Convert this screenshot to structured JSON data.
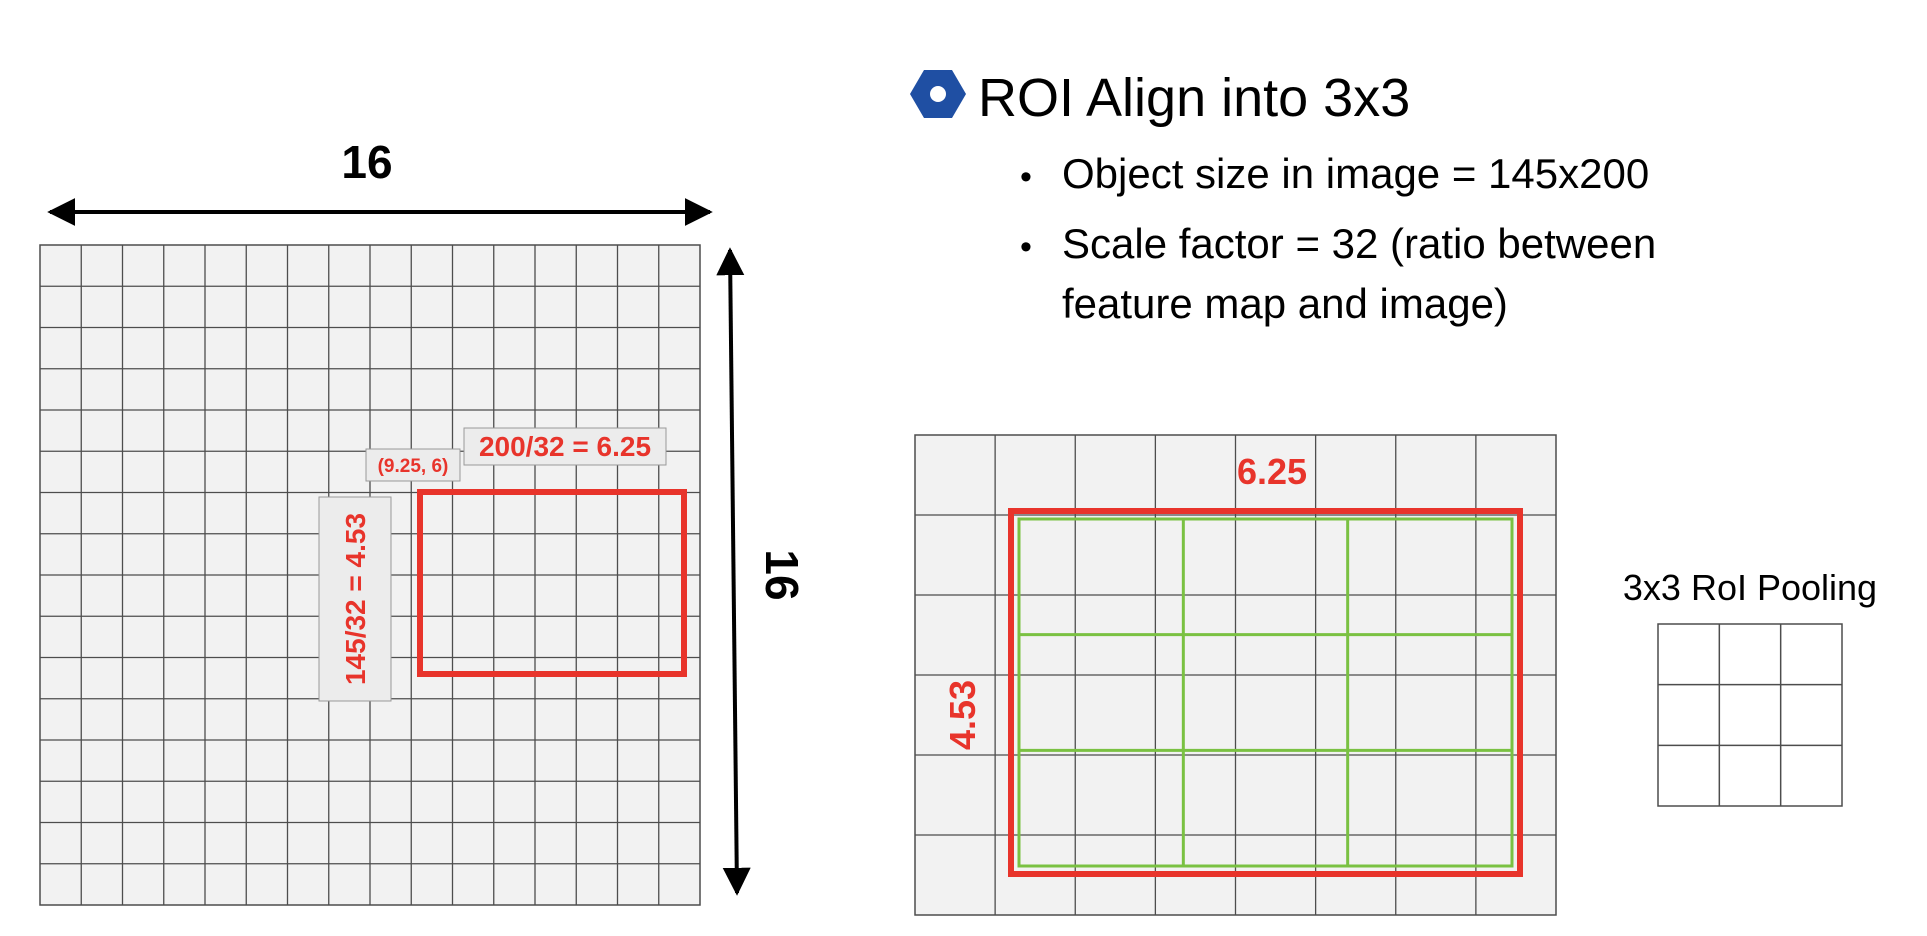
{
  "left_panel": {
    "width_label": "16",
    "height_label": "16",
    "grid_cells": 16,
    "roi_origin_label": "(9.25, 6)",
    "roi_width_label": "200/32 = 6.25",
    "roi_height_label": "145/32 = 4.53"
  },
  "slide": {
    "heading": "ROI Align into 3x3",
    "bullets": [
      "Object size in image = 145x200",
      "Scale factor = 32 (ratio between",
      "feature map and image)"
    ]
  },
  "roi_zoom": {
    "width_label": "6.25",
    "height_label": "4.53",
    "bins": 3
  },
  "pooling": {
    "title": "3x3 RoI Pooling",
    "bins": 3
  },
  "colors": {
    "grid_fill": "#f2f2f2",
    "grid_line": "#4d4d4d",
    "roi_red": "#e8342b",
    "bin_green": "#7ac142",
    "bullet_blue": "#1f4fa3",
    "label_box": "#ececec"
  }
}
